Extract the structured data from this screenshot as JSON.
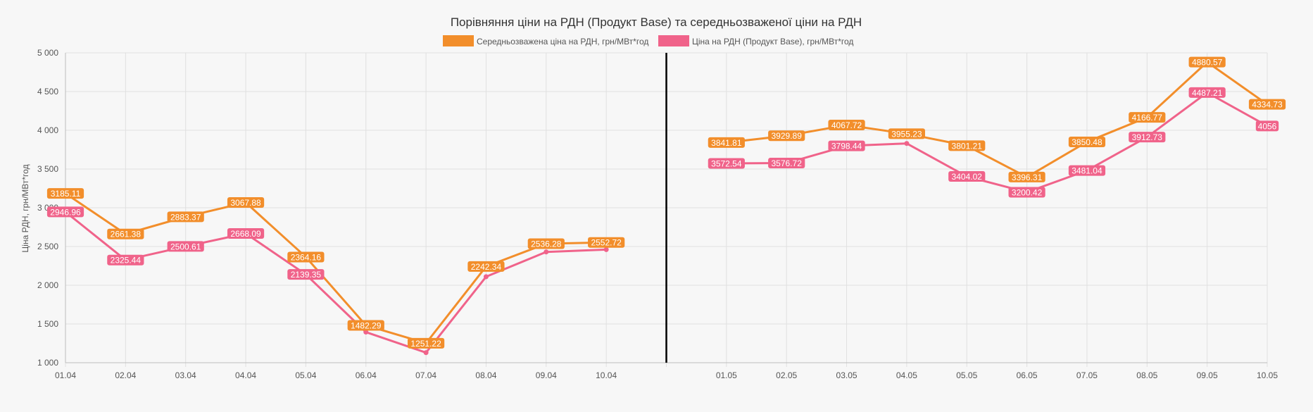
{
  "chart_data": {
    "type": "line",
    "title": "Порівняння ціни на РДН (Продукт Base) та середньозваженої ціни на РДН",
    "ylabel": "Ціна РДН, грн/МВт*год",
    "xlabel": "",
    "ylim": [
      1000,
      5000
    ],
    "y_ticks": [
      1000,
      1500,
      2000,
      2500,
      3000,
      3500,
      4000,
      4500,
      5000
    ],
    "y_tick_labels": [
      "1 000",
      "1 500",
      "2 000",
      "2 500",
      "3 000",
      "3 500",
      "4 000",
      "4 500",
      "5 000"
    ],
    "grid": true,
    "legend_position": "top",
    "categories": [
      "01.04",
      "02.04",
      "03.04",
      "04.04",
      "05.04",
      "06.04",
      "07.04",
      "08.04",
      "09.04",
      "10.04",
      "",
      "01.05",
      "02.05",
      "03.05",
      "04.05",
      "05.05",
      "06.05",
      "07.05",
      "08.05",
      "09.05",
      "10.05"
    ],
    "separator_after_index": 10,
    "series": [
      {
        "name": "Середньозважена ціна на РДН, грн/МВт*год",
        "color": "#f28e2b",
        "values": [
          3185.11,
          2661.38,
          2883.37,
          3067.88,
          2364.16,
          1482.29,
          1251.22,
          2242.34,
          2536.28,
          2552.72,
          null,
          3841.81,
          3929.89,
          4067.72,
          3955.23,
          3801.21,
          3396.31,
          3850.48,
          4166.77,
          4880.57,
          4334.73
        ],
        "labels": [
          "3185.11",
          "2661.38",
          "2883.37",
          "3067.88",
          "2364.16",
          "1482.29",
          "1251.22",
          "2242.34",
          "2536.28",
          "2552.72",
          null,
          "3841.81",
          "3929.89",
          "4067.72",
          "3955.23",
          "3801.21",
          "3396.31",
          "3850.48",
          "4166.77",
          "4880.57",
          "4334.73"
        ]
      },
      {
        "name": "Ціна на РДН (Продукт Base), грн/МВт*год",
        "color": "#f0638a",
        "values": [
          2946.96,
          2325.44,
          2500.61,
          2668.09,
          2139.35,
          1395,
          1130,
          2110,
          2430,
          2460,
          null,
          3572.54,
          3576.72,
          3798.44,
          3830,
          3404.02,
          3200.42,
          3481.04,
          3912.73,
          4487.21,
          4056
        ],
        "labels": [
          "2946.96",
          "2325.44",
          "2500.61",
          "2668.09",
          "2139.35",
          null,
          null,
          null,
          null,
          null,
          null,
          "3572.54",
          "3576.72",
          "3798.44",
          null,
          "3404.02",
          "3200.42",
          "3481.04",
          "3912.73",
          "4487.21",
          "4056"
        ]
      }
    ]
  }
}
